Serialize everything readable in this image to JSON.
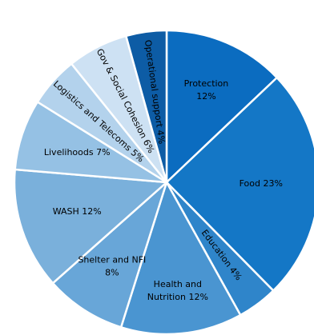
{
  "chart_data": {
    "type": "pie",
    "title": "",
    "start_angle_deg": 0,
    "direction": "clockwise",
    "slices": [
      {
        "label": "Protection",
        "value": 12,
        "value_label": "12%",
        "color": "#0b6cc0",
        "label_style": "two-line"
      },
      {
        "label": "Food",
        "value": 23,
        "value_label": "23%",
        "color": "#1477c6",
        "label_style": "inline"
      },
      {
        "label": "Education",
        "value": 4,
        "value_label": "4%",
        "color": "#2f85ca",
        "label_style": "rotated-inline"
      },
      {
        "label": "Health and Nutrition",
        "value": 12,
        "value_label": "12%",
        "color": "#4a95d1",
        "label_style": "health"
      },
      {
        "label": "Shelter and NFI",
        "value": 8,
        "value_label": "8%",
        "color": "#68a6d8",
        "label_style": "two-line"
      },
      {
        "label": "WASH",
        "value": 12,
        "value_label": "12%",
        "color": "#7ab0db",
        "label_style": "inline"
      },
      {
        "label": "Livelihoods",
        "value": 7,
        "value_label": "7%",
        "color": "#95c1e4",
        "label_style": "inline"
      },
      {
        "label": "Logistics and Telecoms",
        "value": 5,
        "value_label": "5%",
        "color": "#b3d2ec",
        "label_style": "rotated-inline"
      },
      {
        "label": "Gov & Social Cohesion",
        "value": 6,
        "value_label": "6%",
        "color": "#cde1f3",
        "label_style": "rotated-inline"
      },
      {
        "label": "Operational support",
        "value": 4,
        "value_label": "4%",
        "color": "#0d5ca5",
        "label_style": "rotated-inline"
      }
    ]
  }
}
